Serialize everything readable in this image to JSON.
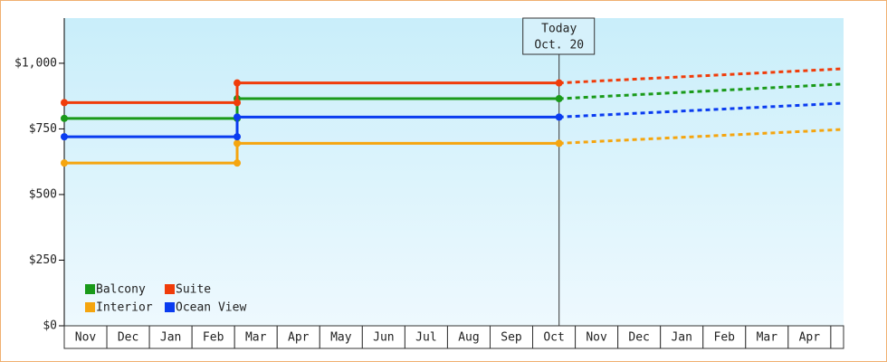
{
  "chart_data": {
    "type": "step-line",
    "categories": [
      "Nov",
      "Dec",
      "Jan",
      "Feb",
      "Mar",
      "Apr",
      "May",
      "Jun",
      "Jul",
      "Aug",
      "Sep",
      "Oct",
      "Nov",
      "Dec",
      "Jan",
      "Feb",
      "Mar",
      "Apr"
    ],
    "xlim": [
      0,
      18.3
    ],
    "ylim": [
      0,
      1172
    ],
    "yticks": [
      {
        "value": 0,
        "label": "$0"
      },
      {
        "value": 250,
        "label": "$250"
      },
      {
        "value": 500,
        "label": "$500"
      },
      {
        "value": 750,
        "label": "$750"
      },
      {
        "value": 1000,
        "label": "$1,000"
      }
    ],
    "annotation": {
      "title": "Today",
      "date": "Oct. 20",
      "x": 11.62
    },
    "legend": "bottom-left",
    "series": [
      {
        "name": "Balcony",
        "color": "#1a9a1a",
        "x": [
          0,
          4.06,
          4.06,
          11.62
        ],
        "values": [
          790,
          790,
          865,
          865
        ],
        "forecast": {
          "x": [
            11.62,
            18.3
          ],
          "values": [
            865,
            921
          ]
        }
      },
      {
        "name": "Suite",
        "color": "#f03c0a",
        "x": [
          0,
          4.06,
          4.06,
          11.62
        ],
        "values": [
          850,
          850,
          925,
          925
        ],
        "forecast": {
          "x": [
            11.62,
            18.3
          ],
          "values": [
            925,
            979
          ]
        }
      },
      {
        "name": "Interior",
        "color": "#f5a50f",
        "x": [
          0,
          4.06,
          4.06,
          11.62
        ],
        "values": [
          620,
          620,
          695,
          695
        ],
        "forecast": {
          "x": [
            11.62,
            18.3
          ],
          "values": [
            695,
            748
          ]
        }
      },
      {
        "name": "Ocean View",
        "color": "#0a3cf0",
        "x": [
          0,
          4.06,
          4.06,
          11.62
        ],
        "values": [
          720,
          720,
          795,
          795
        ],
        "forecast": {
          "x": [
            11.62,
            18.3
          ],
          "values": [
            795,
            848
          ]
        }
      }
    ]
  }
}
